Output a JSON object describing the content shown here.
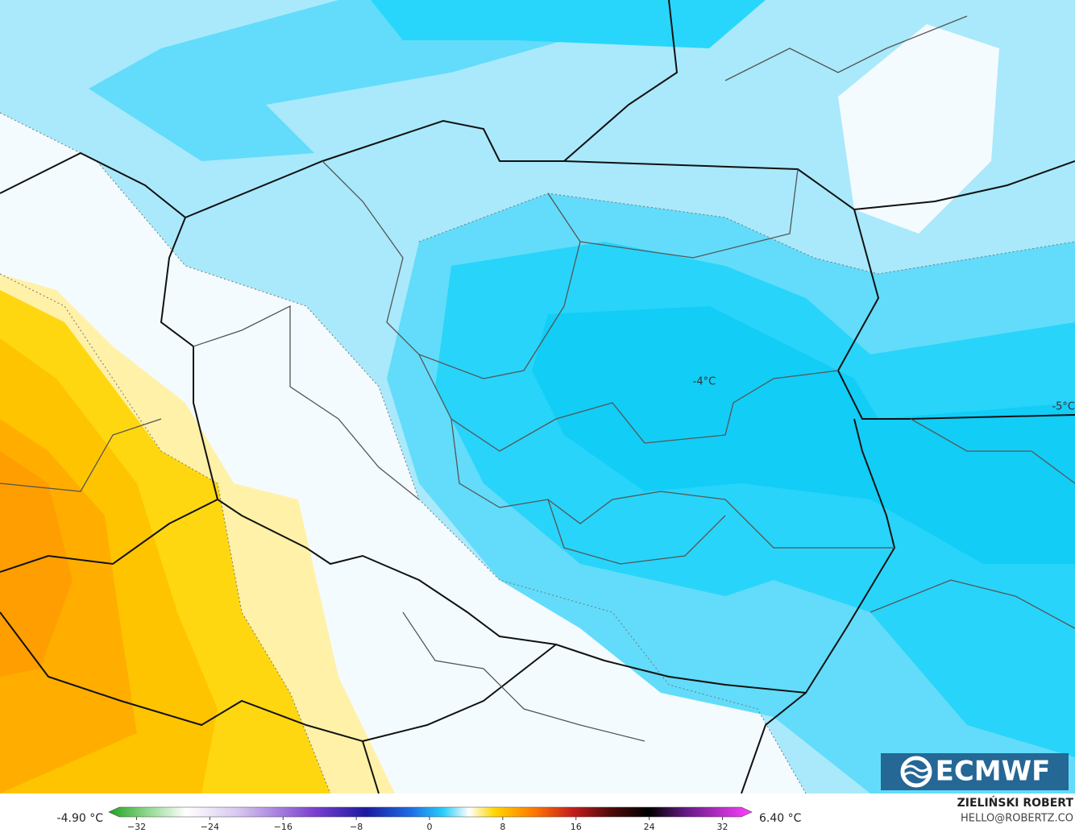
{
  "map_labels": [
    "-4°C",
    "-5°C"
  ],
  "logo": "ECMWF",
  "colorbar": {
    "min_label": "-4.90 °C",
    "max_label": "6.40 °C",
    "ticks": [
      {
        "value": -32,
        "label": "−32"
      },
      {
        "value": -24,
        "label": "−24"
      },
      {
        "value": -16,
        "label": "−16"
      },
      {
        "value": -8,
        "label": "−8"
      },
      {
        "value": 0,
        "label": "0"
      },
      {
        "value": 8,
        "label": "8"
      },
      {
        "value": 16,
        "label": "16"
      },
      {
        "value": 24,
        "label": "24"
      },
      {
        "value": 32,
        "label": "32"
      }
    ]
  },
  "author": {
    "name": "ZIELIŃSKI ROBERT",
    "email": "HELLO@ROBERTZ.CO"
  }
}
